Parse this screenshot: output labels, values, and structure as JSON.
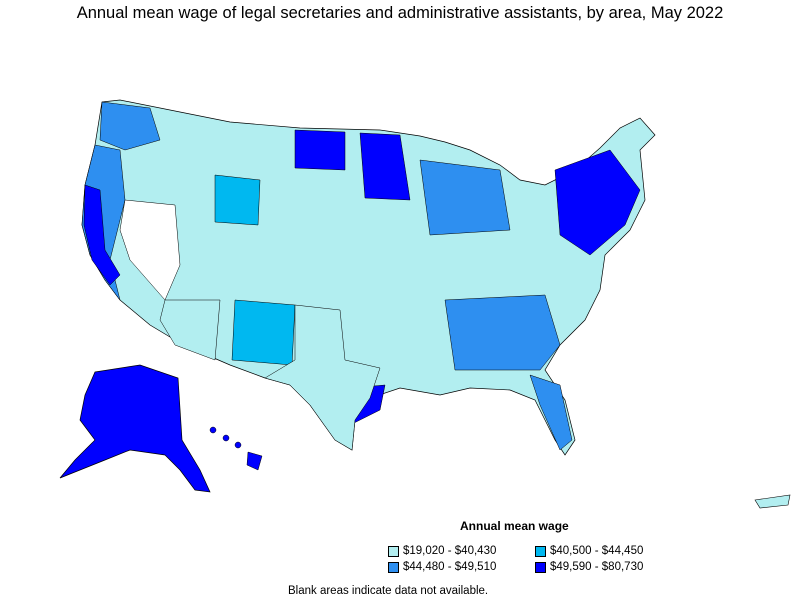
{
  "title": "Annual mean wage of legal secretaries and administrative assistants, by area, May 2022",
  "legend": {
    "title": "Annual mean wage",
    "items": [
      {
        "label": "$19,020 - $40,430",
        "color": "#b2eef0"
      },
      {
        "label": "$40,500 - $44,450",
        "color": "#00b8f0"
      },
      {
        "label": "$44,480 - $49,510",
        "color": "#2e8ff0"
      },
      {
        "label": "$49,590 - $80,730",
        "color": "#0000ff"
      }
    ]
  },
  "footnote": "Blank areas indicate data not available.",
  "colors": {
    "tier1": "#b2eef0",
    "tier2": "#00b8f0",
    "tier3": "#2e8ff0",
    "tier4": "#0000ff",
    "no_data": "#ffffff",
    "outline": "#000000"
  },
  "map_regions": [
    {
      "name": "alaska",
      "tier": 4
    },
    {
      "name": "hawaii",
      "tier": 4
    },
    {
      "name": "puerto-rico",
      "tier": 1
    }
  ]
}
